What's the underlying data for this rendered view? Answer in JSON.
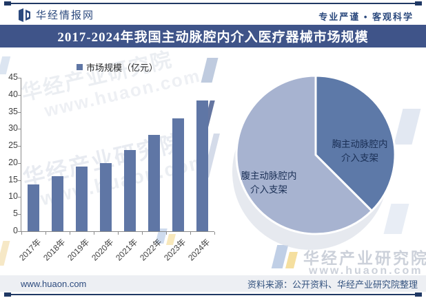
{
  "header": {
    "brand": "华经情报网",
    "slogan": "专业严谨 • 客观科学"
  },
  "title": "2017-2024年我国主动脉腔内介入医疗器械市场规模",
  "chart_data": [
    {
      "type": "bar",
      "legend": "市场规模（亿元）",
      "categories": [
        "2017年",
        "2018年",
        "2019年",
        "2020年",
        "2021年",
        "2022年",
        "2023年",
        "2024年"
      ],
      "values": [
        13.7,
        16.2,
        18.9,
        19.9,
        23.9,
        28.3,
        33.1,
        38.3
      ],
      "xlabel": "",
      "ylabel": "",
      "ylim": [
        0,
        45
      ],
      "ytick_step": 5,
      "grid": false,
      "legend_position": "top",
      "bar_color": "#5f76a5"
    },
    {
      "type": "pie",
      "slices": [
        {
          "label": "胸主动脉腔内介入支架",
          "value": 37.5,
          "color": "#5d79a8"
        },
        {
          "label": "腹主动脉腔内介入支架",
          "value": 62.5,
          "color": "#a7b3d0"
        }
      ],
      "start_angle_deg": 0,
      "direction": "clockwise",
      "units": "%"
    }
  ],
  "footer": {
    "site": "www.huaon.com",
    "source": "资料来源：公开资料、华经产业研究院整理"
  },
  "watermark": {
    "name": "华经产业研究院",
    "url": "www.huaon.com"
  },
  "colors": {
    "title_bar": "#3f5489",
    "rule_navy": "#1f3864",
    "bar": "#5f76a5",
    "pie_dark": "#5d79a8",
    "pie_light": "#a7b3d0",
    "footer_bg": "#edeff3",
    "axis": "#8a8a8a"
  }
}
